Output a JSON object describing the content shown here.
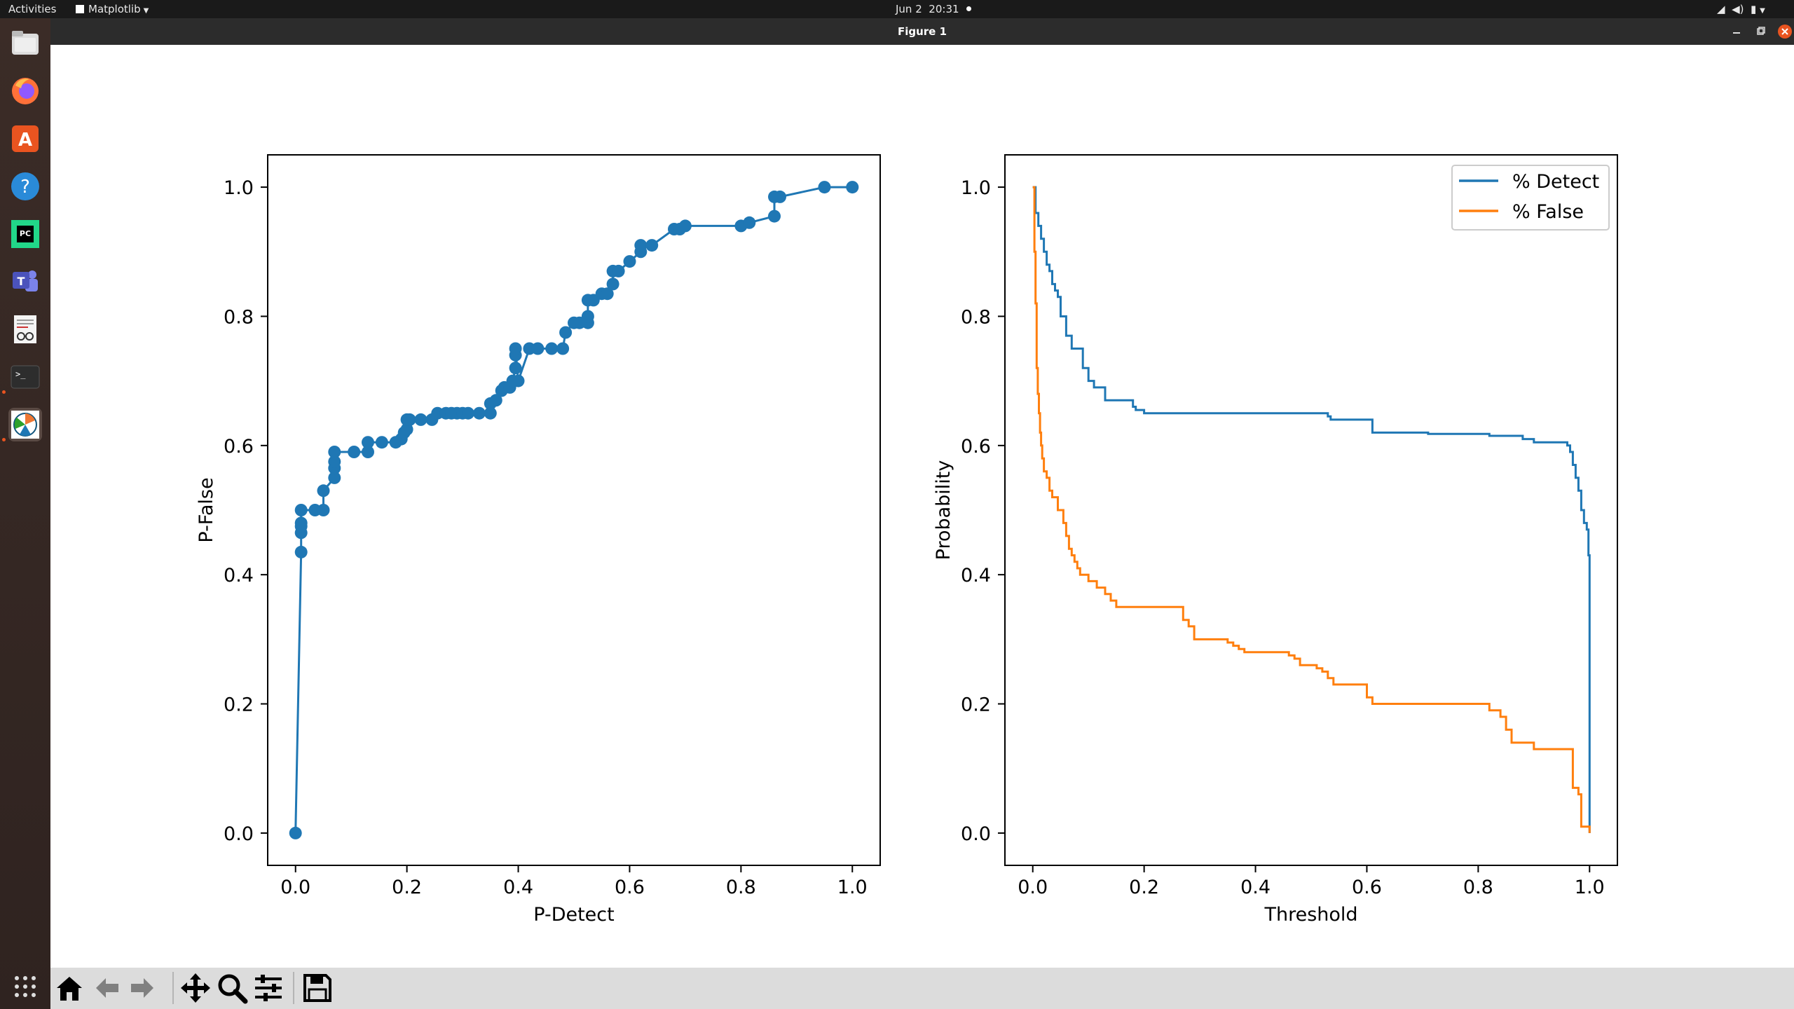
{
  "system": {
    "activities": "Activities",
    "app_menu": "Matplotlib",
    "date": "Jun 2",
    "time": "20:31"
  },
  "window": {
    "title": "Figure 1"
  },
  "dock": {
    "items": [
      "files-icon",
      "firefox-icon",
      "software-center-icon",
      "help-icon",
      "pycharm-icon",
      "teams-icon",
      "document-viewer-icon",
      "terminal-icon",
      "matplotlib-icon"
    ],
    "apps_grid": "show-apps-icon"
  },
  "toolbar": {
    "buttons": [
      "home-icon",
      "back-icon",
      "forward-icon",
      "pan-icon",
      "zoom-icon",
      "configure-subplots-icon",
      "save-icon"
    ]
  },
  "colors": {
    "blue": "#1f77b4",
    "orange": "#ff7f0e",
    "topbar": "#1a1a1a",
    "dock": "#3a2b26",
    "titlebar": "#2c2c2c",
    "toolbar": "#dcdcdc",
    "close": "#e95420"
  },
  "chart_data": [
    {
      "type": "line",
      "xlabel": "P-Detect",
      "ylabel": "P-False",
      "xlim": [
        -0.05,
        1.05
      ],
      "ylim": [
        -0.05,
        1.05
      ],
      "xticks": [
        "0.0",
        "0.2",
        "0.4",
        "0.6",
        "0.8",
        "1.0"
      ],
      "yticks": [
        "0.0",
        "0.2",
        "0.4",
        "0.6",
        "0.8",
        "1.0"
      ],
      "markers": true,
      "series": [
        {
          "x": [
            0.0,
            0.01,
            0.01,
            0.01,
            0.01,
            0.01,
            0.035,
            0.05,
            0.05,
            0.07,
            0.07,
            0.07,
            0.07,
            0.105,
            0.13,
            0.13,
            0.155,
            0.18,
            0.19,
            0.195,
            0.2,
            0.2,
            0.205,
            0.225,
            0.245,
            0.255,
            0.27,
            0.28,
            0.29,
            0.3,
            0.31,
            0.33,
            0.35,
            0.35,
            0.36,
            0.37,
            0.375,
            0.385,
            0.39,
            0.395,
            0.395,
            0.395,
            0.4,
            0.42,
            0.435,
            0.46,
            0.48,
            0.485,
            0.5,
            0.51,
            0.525,
            0.525,
            0.525,
            0.535,
            0.55,
            0.56,
            0.57,
            0.57,
            0.58,
            0.6,
            0.62,
            0.62,
            0.64,
            0.68,
            0.69,
            0.7,
            0.8,
            0.815,
            0.86,
            0.86,
            0.87,
            0.95,
            1.0
          ],
          "y": [
            0.0,
            0.435,
            0.465,
            0.475,
            0.48,
            0.5,
            0.5,
            0.5,
            0.53,
            0.55,
            0.565,
            0.575,
            0.59,
            0.59,
            0.59,
            0.605,
            0.605,
            0.605,
            0.61,
            0.62,
            0.625,
            0.64,
            0.64,
            0.64,
            0.64,
            0.65,
            0.65,
            0.65,
            0.65,
            0.65,
            0.65,
            0.65,
            0.65,
            0.665,
            0.67,
            0.685,
            0.69,
            0.69,
            0.7,
            0.72,
            0.74,
            0.75,
            0.7,
            0.75,
            0.75,
            0.75,
            0.75,
            0.775,
            0.79,
            0.79,
            0.79,
            0.8,
            0.825,
            0.825,
            0.835,
            0.835,
            0.85,
            0.87,
            0.87,
            0.885,
            0.9,
            0.91,
            0.91,
            0.935,
            0.935,
            0.94,
            0.94,
            0.945,
            0.955,
            0.985,
            0.985,
            1.0,
            1.0
          ]
        }
      ]
    },
    {
      "type": "line",
      "xlabel": "Threshold",
      "ylabel": "Probability",
      "xlim": [
        -0.05,
        1.05
      ],
      "ylim": [
        -0.05,
        1.05
      ],
      "xticks": [
        "0.0",
        "0.2",
        "0.4",
        "0.6",
        "0.8",
        "1.0"
      ],
      "yticks": [
        "0.0",
        "0.2",
        "0.4",
        "0.6",
        "0.8",
        "1.0"
      ],
      "legend": {
        "position": "top-right",
        "entries": [
          "% Detect",
          "% False"
        ]
      },
      "series": [
        {
          "name": "% Detect",
          "x": [
            0.0,
            0.005,
            0.01,
            0.015,
            0.02,
            0.025,
            0.03,
            0.035,
            0.04,
            0.045,
            0.05,
            0.06,
            0.07,
            0.09,
            0.1,
            0.11,
            0.13,
            0.18,
            0.185,
            0.2,
            0.35,
            0.45,
            0.53,
            0.535,
            0.6,
            0.61,
            0.69,
            0.71,
            0.8,
            0.82,
            0.83,
            0.88,
            0.9,
            0.96,
            0.965,
            0.97,
            0.975,
            0.98,
            0.985,
            0.99,
            0.995,
            0.998,
            1.0
          ],
          "y": [
            1.0,
            0.96,
            0.94,
            0.92,
            0.9,
            0.88,
            0.87,
            0.85,
            0.84,
            0.83,
            0.8,
            0.77,
            0.75,
            0.72,
            0.7,
            0.69,
            0.67,
            0.66,
            0.655,
            0.65,
            0.65,
            0.65,
            0.645,
            0.64,
            0.64,
            0.62,
            0.62,
            0.618,
            0.618,
            0.615,
            0.615,
            0.61,
            0.605,
            0.6,
            0.59,
            0.57,
            0.55,
            0.53,
            0.5,
            0.48,
            0.47,
            0.43,
            0.0
          ]
        },
        {
          "name": "% False",
          "x": [
            0.0,
            0.003,
            0.005,
            0.007,
            0.009,
            0.011,
            0.013,
            0.015,
            0.017,
            0.02,
            0.025,
            0.03,
            0.035,
            0.045,
            0.055,
            0.06,
            0.065,
            0.07,
            0.075,
            0.08,
            0.085,
            0.1,
            0.115,
            0.13,
            0.14,
            0.15,
            0.27,
            0.28,
            0.29,
            0.35,
            0.36,
            0.37,
            0.38,
            0.46,
            0.47,
            0.48,
            0.51,
            0.52,
            0.53,
            0.54,
            0.6,
            0.61,
            0.8,
            0.82,
            0.84,
            0.85,
            0.86,
            0.9,
            0.96,
            0.97,
            0.98,
            0.985,
            1.0
          ],
          "y": [
            1.0,
            0.9,
            0.82,
            0.72,
            0.68,
            0.65,
            0.62,
            0.6,
            0.58,
            0.56,
            0.55,
            0.53,
            0.52,
            0.5,
            0.48,
            0.46,
            0.44,
            0.43,
            0.42,
            0.41,
            0.4,
            0.39,
            0.38,
            0.37,
            0.36,
            0.35,
            0.33,
            0.32,
            0.3,
            0.295,
            0.29,
            0.285,
            0.28,
            0.275,
            0.27,
            0.26,
            0.255,
            0.25,
            0.24,
            0.23,
            0.21,
            0.2,
            0.2,
            0.19,
            0.18,
            0.16,
            0.14,
            0.13,
            0.13,
            0.07,
            0.06,
            0.01,
            0.0
          ]
        }
      ]
    }
  ]
}
